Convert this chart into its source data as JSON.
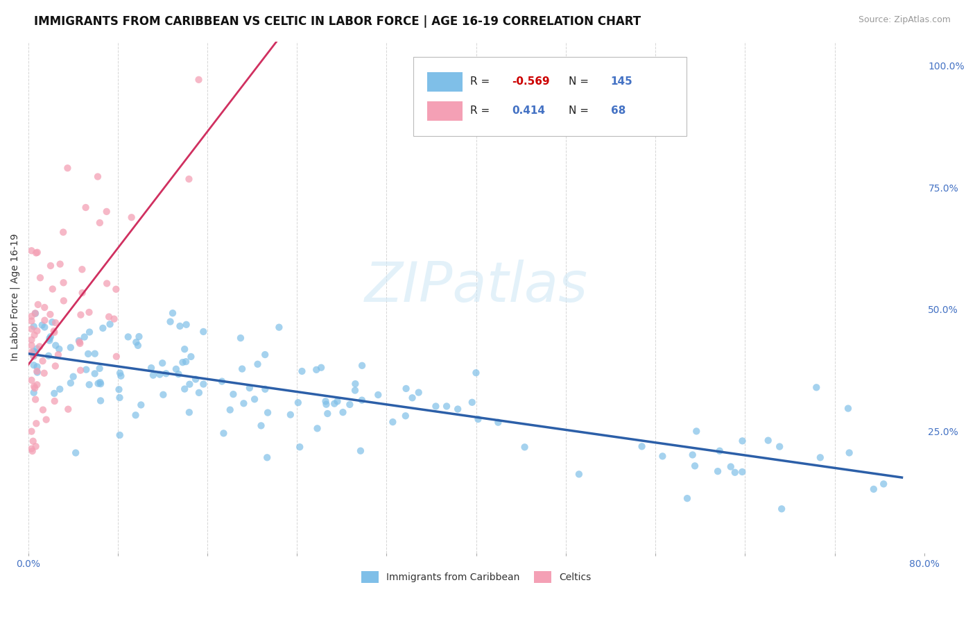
{
  "title": "IMMIGRANTS FROM CARIBBEAN VS CELTIC IN LABOR FORCE | AGE 16-19 CORRELATION CHART",
  "source_text": "Source: ZipAtlas.com",
  "ylabel": "In Labor Force | Age 16-19",
  "xlim": [
    0.0,
    0.8
  ],
  "ylim": [
    0.0,
    1.05
  ],
  "xtick_positions": [
    0.0,
    0.08,
    0.16,
    0.24,
    0.32,
    0.4,
    0.48,
    0.56,
    0.64,
    0.72,
    0.8
  ],
  "xticklabels": [
    "0.0%",
    "",
    "",
    "",
    "",
    "",
    "",
    "",
    "",
    "",
    "80.0%"
  ],
  "ytick_right_positions": [
    0.25,
    0.5,
    0.75,
    1.0
  ],
  "ytick_right_labels": [
    "25.0%",
    "50.0%",
    "75.0%",
    "100.0%"
  ],
  "caribbean_color": "#7fbfe8",
  "celtic_color": "#f4a0b5",
  "caribbean_trend_color": "#2c5fa8",
  "celtic_trend_color": "#d03060",
  "watermark_text": "ZIPatlas",
  "legend_R_caribbean": "-0.569",
  "legend_N_caribbean": "145",
  "legend_R_celtic": "0.414",
  "legend_N_celtic": "68",
  "title_fontsize": 12,
  "axis_label_fontsize": 10,
  "tick_fontsize": 10,
  "legend_label_caribbean": "Immigrants from Caribbean",
  "legend_label_celtic": "Celtics"
}
